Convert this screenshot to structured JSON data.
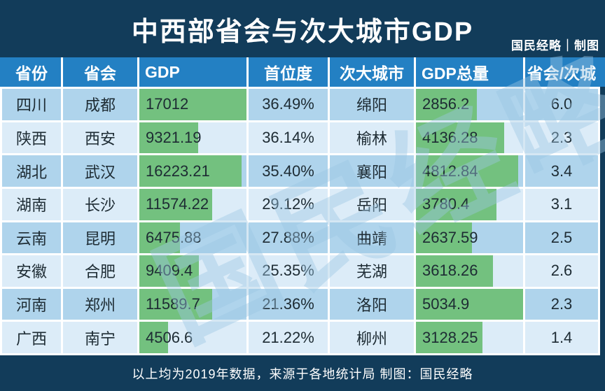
{
  "header": {
    "title": "中西部省会与次大城市GDP",
    "credit": "国民经略｜制图"
  },
  "watermark": "国民经略",
  "footer": {
    "note": "以上均为2019年数据，来源于各地统计局  制图：国民经略"
  },
  "chart_data": {
    "type": "table",
    "title": "中西部省会与次大城市GDP",
    "columns": [
      "省份",
      "省会",
      "GDP",
      "首位度",
      "次大城市",
      "GDP总量",
      "省会/次城"
    ],
    "col_keys": [
      "province",
      "capital",
      "gdp",
      "primacy",
      "second-city",
      "second-gdp",
      "ratio"
    ],
    "bar_column_indexes": [
      2,
      5
    ],
    "bar_scale": "bar width proportional to column maximum",
    "rows": [
      [
        "四川",
        "成都",
        17012,
        "36.49%",
        "绵阳",
        2856.2,
        "6.0"
      ],
      [
        "陕西",
        "西安",
        9321.19,
        "36.14%",
        "榆林",
        4136.28,
        "2.3"
      ],
      [
        "湖北",
        "武汉",
        16223.21,
        "35.40%",
        "襄阳",
        4812.84,
        "3.4"
      ],
      [
        "湖南",
        "长沙",
        11574.22,
        "29.12%",
        "岳阳",
        3780.4,
        "3.1"
      ],
      [
        "云南",
        "昆明",
        6475.88,
        "27.88%",
        "曲靖",
        2637.59,
        "2.5"
      ],
      [
        "安徽",
        "合肥",
        9409.4,
        "25.35%",
        "芜湖",
        3618.26,
        "2.6"
      ],
      [
        "河南",
        "郑州",
        11589.7,
        "21.36%",
        "洛阳",
        5034.9,
        "2.3"
      ],
      [
        "广西",
        "南宁",
        4506.6,
        "21.22%",
        "柳州",
        3128.25,
        "1.4"
      ]
    ],
    "footnote": "以上均为2019年数据，来源于各地统计局  制图：国民经略"
  },
  "colors": {
    "navy": "#123c5a",
    "header-blue": "#2380c3",
    "row-dark": "#afd4ec",
    "row-light": "#dcecf8",
    "bar-green": "#73c17f",
    "cell-text": "#1d2b33",
    "header-text": "#ffffff",
    "watermark": "#9cc7e4"
  }
}
